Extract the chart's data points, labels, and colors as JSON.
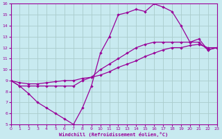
{
  "xlabel": "Windchill (Refroidissement éolien,°C)",
  "xlim": [
    0,
    23
  ],
  "ylim": [
    5,
    16
  ],
  "xticks": [
    0,
    1,
    2,
    3,
    4,
    5,
    6,
    7,
    8,
    9,
    10,
    11,
    12,
    13,
    14,
    15,
    16,
    17,
    18,
    19,
    20,
    21,
    22,
    23
  ],
  "yticks": [
    5,
    6,
    7,
    8,
    9,
    10,
    11,
    12,
    13,
    14,
    15,
    16
  ],
  "background_color": "#c8eaf0",
  "line_color": "#990099",
  "grid_color": "#aacccc",
  "line1_x": [
    0,
    1,
    2,
    3,
    4,
    5,
    6,
    7,
    8,
    9,
    10,
    11,
    12,
    13,
    14,
    15,
    16,
    17,
    18,
    19,
    20,
    21,
    22,
    23
  ],
  "line1_y": [
    9.0,
    8.5,
    7.8,
    7.0,
    6.5,
    6.0,
    5.5,
    5.0,
    6.5,
    8.5,
    11.5,
    13.0,
    15.0,
    15.2,
    15.5,
    15.3,
    16.0,
    15.7,
    15.3,
    14.0,
    12.5,
    12.8,
    11.8,
    12.0
  ],
  "line2_x": [
    0,
    1,
    2,
    3,
    4,
    5,
    6,
    7,
    8,
    9,
    10,
    11,
    12,
    13,
    14,
    15,
    16,
    17,
    18,
    19,
    20,
    21,
    22,
    23
  ],
  "line2_y": [
    9.0,
    8.5,
    8.5,
    8.5,
    8.5,
    8.5,
    8.5,
    8.5,
    9.0,
    9.3,
    10.0,
    10.5,
    11.0,
    11.5,
    12.0,
    12.3,
    12.5,
    12.5,
    12.5,
    12.5,
    12.5,
    12.5,
    11.8,
    12.0
  ],
  "line3_x": [
    0,
    1,
    2,
    3,
    4,
    5,
    6,
    7,
    8,
    9,
    10,
    11,
    12,
    13,
    14,
    15,
    16,
    17,
    18,
    19,
    20,
    21,
    22,
    23
  ],
  "line3_y": [
    9.0,
    8.8,
    8.7,
    8.7,
    8.8,
    8.9,
    9.0,
    9.0,
    9.2,
    9.3,
    9.5,
    9.8,
    10.2,
    10.5,
    10.8,
    11.2,
    11.5,
    11.8,
    12.0,
    12.0,
    12.2,
    12.3,
    12.0,
    12.0
  ]
}
